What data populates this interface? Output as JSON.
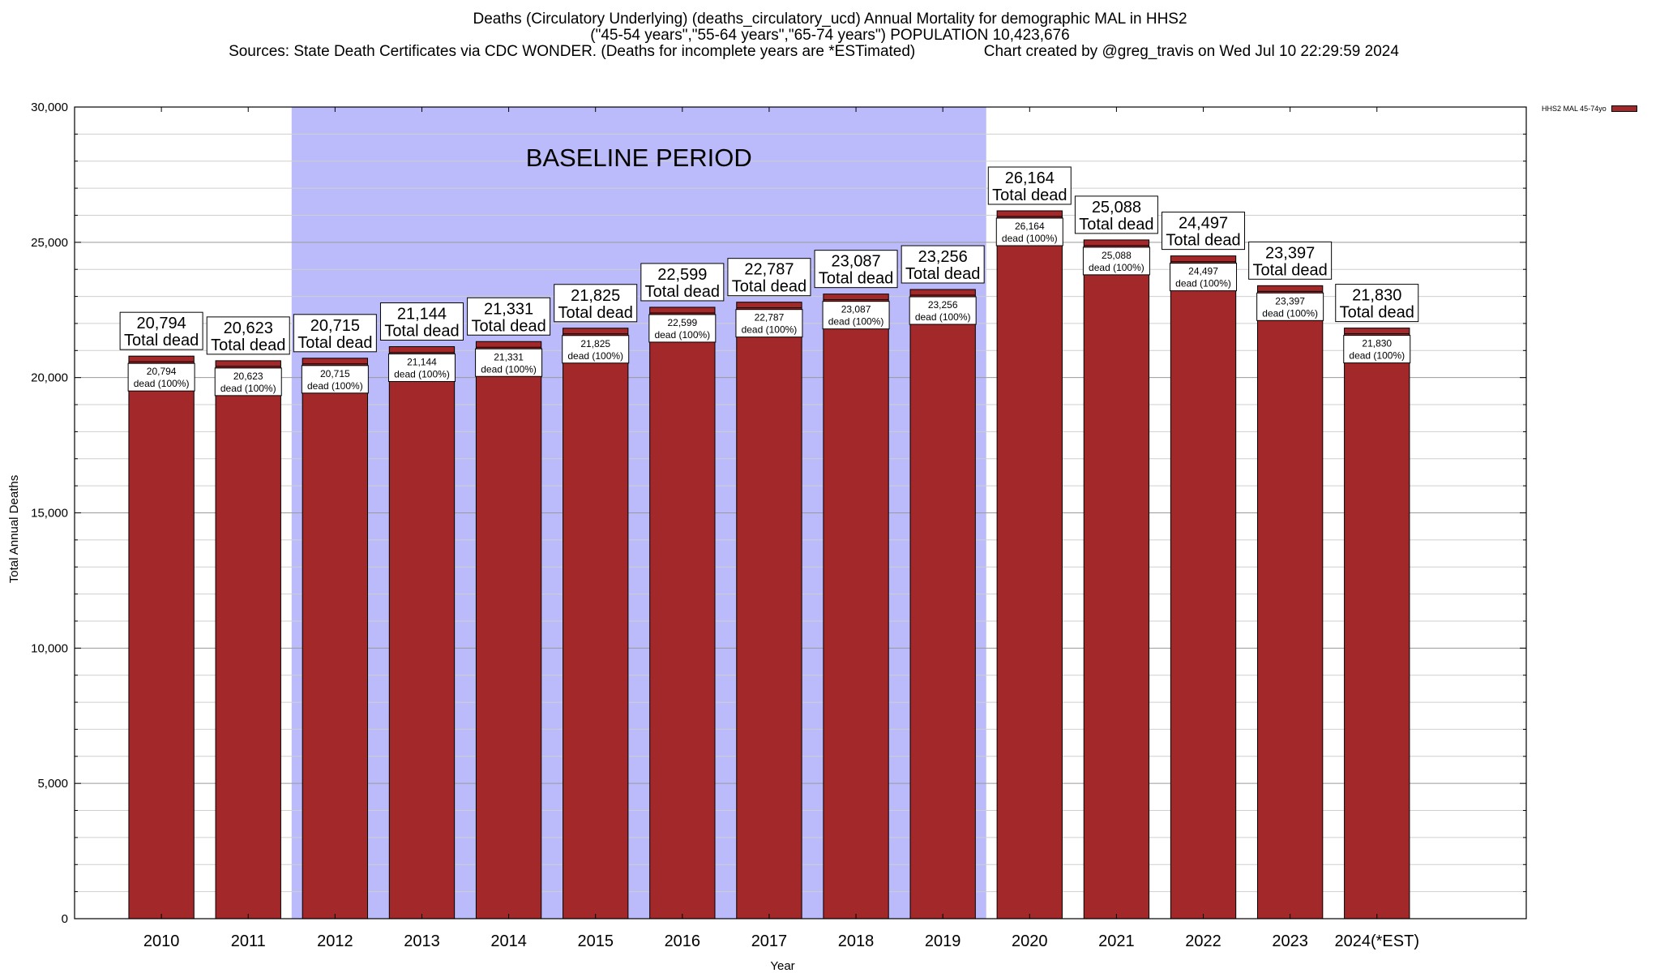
{
  "title": {
    "line1": "Deaths (Circulatory Underlying) (deaths_circulatory_ucd) Annual Mortality for demographic MAL in HHS2",
    "line2": "(\"45-54 years\",\"55-64 years\",\"65-74 years\") POPULATION 10,423,676",
    "line3": "Sources: State Death Certificates via CDC WONDER. (Deaths for incomplete years are *ESTimated)                Chart created by @greg_travis on Wed Jul 10 22:29:59 2024"
  },
  "legend": {
    "label": "HHS2 MAL 45-74yo",
    "color": "#a2282a"
  },
  "colors": {
    "bar": "#a2282a",
    "baseline": "#bbbbfb"
  },
  "chart_data": {
    "type": "bar",
    "xlabel": "Year",
    "ylabel": "Total Annual Deaths",
    "ylim": [
      0,
      30000
    ],
    "yticks": [
      0,
      5000,
      10000,
      15000,
      20000,
      25000,
      30000
    ],
    "ytick_labels": [
      "0",
      "5,000",
      "10,000",
      "15,000",
      "20,000",
      "25,000",
      "30,000"
    ],
    "grid": true,
    "legend_position": "top-right",
    "categories": [
      "2010",
      "2011",
      "2012",
      "2013",
      "2014",
      "2015",
      "2016",
      "2017",
      "2018",
      "2019",
      "2020",
      "2021",
      "2022",
      "2023",
      "2024(*EST)"
    ],
    "series": [
      {
        "name": "HHS2 MAL 45-74yo",
        "values": [
          20794,
          20623,
          20715,
          21144,
          21331,
          21825,
          22599,
          22787,
          23087,
          23256,
          26164,
          25088,
          24497,
          23397,
          21830
        ]
      }
    ],
    "value_labels": [
      "20,794",
      "20,623",
      "20,715",
      "21,144",
      "21,331",
      "21,825",
      "22,599",
      "22,787",
      "23,087",
      "23,256",
      "26,164",
      "25,088",
      "24,497",
      "23,397",
      "21,830"
    ],
    "total_label": "Total dead",
    "inner_label_suffix": "dead (100%)",
    "baseline_period": {
      "label": "BASELINE PERIOD",
      "start": "2012",
      "end": "2019"
    }
  }
}
